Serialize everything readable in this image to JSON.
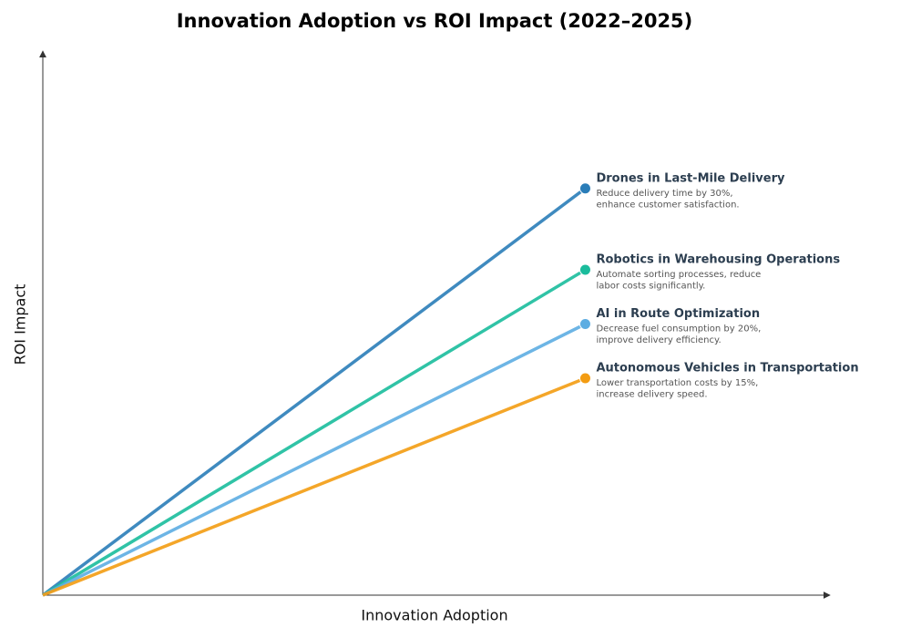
{
  "chart_data": {
    "type": "line",
    "title": "Innovation Adoption vs ROI Impact (2022–2025)",
    "x_label": "Innovation Adoption",
    "y_label": "ROI Impact",
    "xlim": [
      0,
      10
    ],
    "ylim": [
      0,
      10
    ],
    "series": [
      {
        "name": "Drones in Last-Mile Delivery",
        "color": "#2a7db8",
        "x": [
          0,
          6.9
        ],
        "values": [
          0,
          7.5
        ],
        "description": [
          "Reduce delivery time by 30%,",
          "enhance customer satisfaction."
        ]
      },
      {
        "name": "Robotics in Warehousing Operations",
        "color": "#1abc9c",
        "x": [
          0,
          6.9
        ],
        "values": [
          0,
          6
        ],
        "description": [
          "Automate sorting processes, reduce",
          "labor costs significantly."
        ]
      },
      {
        "name": "AI in Route Optimization",
        "color": "#5dade2",
        "x": [
          0,
          6.9
        ],
        "values": [
          0,
          5
        ],
        "description": [
          "Decrease fuel consumption by 20%,",
          "improve delivery efficiency."
        ]
      },
      {
        "name": "Autonomous Vehicles in Transportation",
        "color": "#f39c12",
        "x": [
          0,
          6.9
        ],
        "values": [
          0,
          4
        ],
        "description": [
          "Lower transportation costs by 15%,",
          "increase delivery speed."
        ]
      }
    ]
  }
}
